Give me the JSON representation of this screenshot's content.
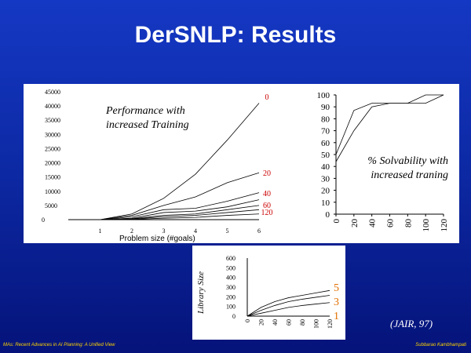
{
  "slide": {
    "title": "DerSNLP: Results",
    "citation": "(JAIR, 97)",
    "footer_left": "MAs: Recent Advances in AI Planning: A Unified View",
    "footer_right": "Subbarao Kambhampati"
  },
  "chart_data": [
    {
      "type": "line",
      "annotation": [
        "Performance with",
        "increased Training"
      ],
      "xlabel": "Problem size (#goals)",
      "ylabel": "",
      "x": [
        1,
        2,
        3,
        4,
        5,
        6
      ],
      "xlim": [
        0,
        6
      ],
      "ylim": [
        0,
        45000
      ],
      "yticks": [
        0,
        5000,
        10000,
        15000,
        20000,
        25000,
        30000,
        35000,
        40000,
        45000
      ],
      "grid": false,
      "series": [
        {
          "name": "0",
          "values": [
            0,
            2000,
            7500,
            16000,
            28000,
            41000
          ]
        },
        {
          "name": "20",
          "values": [
            0,
            1500,
            5000,
            8000,
            13000,
            16500
          ]
        },
        {
          "name": "40",
          "values": [
            0,
            1000,
            3500,
            4000,
            6500,
            9500
          ]
        },
        {
          "name": "60",
          "values": [
            0,
            500,
            2500,
            3000,
            4500,
            7000
          ]
        },
        {
          "name": "120",
          "values": [
            0,
            300,
            1500,
            2000,
            3500,
            5000
          ]
        },
        {
          "name": "",
          "values": [
            0,
            200,
            1000,
            1500,
            2500,
            3500
          ]
        },
        {
          "name": "",
          "values": [
            0,
            100,
            500,
            800,
            1500,
            2000
          ]
        }
      ]
    },
    {
      "type": "line",
      "annotation": [
        "% Solvability with",
        "increased traning"
      ],
      "x": [
        0,
        20,
        40,
        60,
        80,
        100,
        120
      ],
      "xticks": [
        0,
        20,
        40,
        60,
        80,
        100,
        120
      ],
      "xlim": [
        0,
        120
      ],
      "ylim": [
        0,
        100
      ],
      "yticks": [
        0,
        10,
        20,
        30,
        40,
        50,
        60,
        70,
        80,
        90,
        100
      ],
      "grid": false,
      "series": [
        {
          "name": "",
          "values": [
            50,
            87,
            93,
            93,
            93,
            100,
            100
          ]
        },
        {
          "name": "",
          "values": [
            44,
            70,
            90,
            93,
            93,
            93,
            100
          ]
        }
      ]
    },
    {
      "type": "line",
      "ylabel": "Library Size",
      "x": [
        0,
        20,
        40,
        60,
        80,
        100,
        120
      ],
      "xticks": [
        0,
        20,
        40,
        60,
        80,
        100,
        120
      ],
      "xlim": [
        0,
        120
      ],
      "ylim": [
        0,
        600
      ],
      "yticks": [
        0,
        100,
        200,
        300,
        400,
        500,
        600
      ],
      "side_labels": [
        "5",
        "3",
        "1"
      ],
      "grid": false,
      "series": [
        {
          "name": "",
          "values": [
            0,
            90,
            150,
            190,
            215,
            240,
            265
          ]
        },
        {
          "name": "",
          "values": [
            0,
            60,
            110,
            150,
            175,
            195,
            215
          ]
        },
        {
          "name": "",
          "values": [
            0,
            30,
            60,
            90,
            110,
            125,
            140
          ]
        }
      ]
    }
  ]
}
